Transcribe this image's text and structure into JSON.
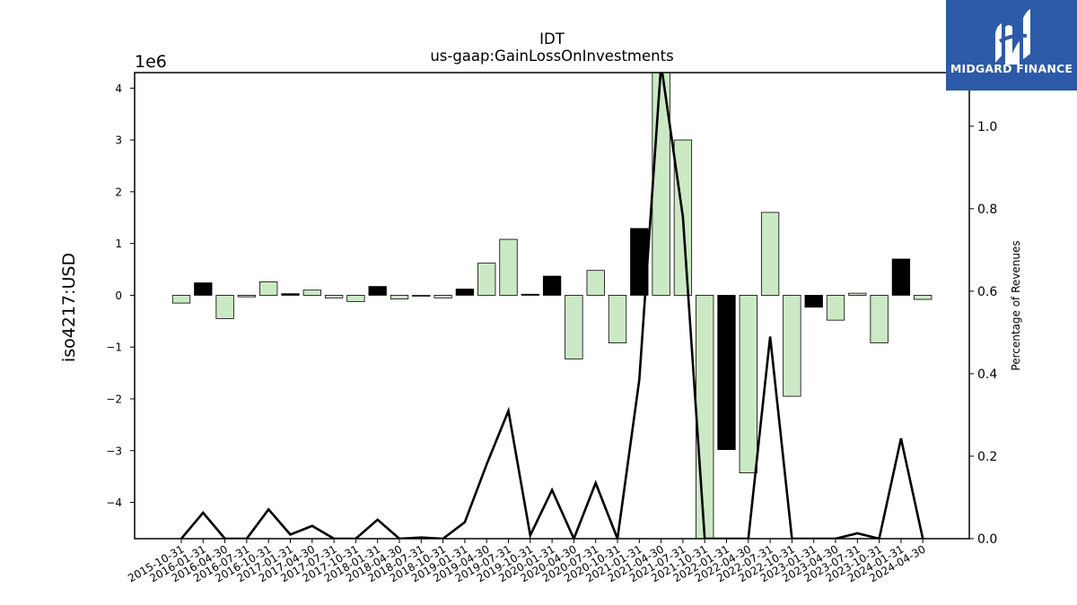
{
  "chart_data": {
    "type": "bar",
    "title": "IDT",
    "subtitle": "us-gaap:GainLossOnInvestments",
    "ylabel": "iso4217:USD",
    "y2label": "Percentage of Revenues",
    "y_multiplier": "1e6",
    "ylim": [
      -4.7,
      4.3
    ],
    "y2lim": [
      0.0,
      1.13
    ],
    "y_ticks": [
      -4,
      -3,
      -2,
      -1,
      0,
      1,
      2,
      3,
      4
    ],
    "y_tick_labels": [
      "−4",
      "−3",
      "−2",
      "−1",
      "0",
      "1",
      "2",
      "3",
      "4"
    ],
    "y2_ticks": [
      0.0,
      0.2,
      0.4,
      0.6,
      0.8,
      1.0
    ],
    "y2_tick_labels": [
      "0.0",
      "0.2",
      "0.4",
      "0.6",
      "0.8",
      "1.0"
    ],
    "categories": [
      "2015-10-31",
      "2016-01-31",
      "2016-04-30",
      "2016-07-31",
      "2016-10-31",
      "2017-01-31",
      "2017-04-30",
      "2017-07-31",
      "2017-10-31",
      "2018-01-31",
      "2018-04-30",
      "2018-07-31",
      "2018-10-31",
      "2019-01-31",
      "2019-04-30",
      "2019-07-31",
      "2019-10-31",
      "2020-01-31",
      "2020-04-30",
      "2020-07-31",
      "2020-10-31",
      "2021-01-31",
      "2021-04-30",
      "2021-07-31",
      "2021-10-31",
      "2022-01-31",
      "2022-04-30",
      "2022-07-31",
      "2022-10-31",
      "2023-01-31",
      "2023-04-30",
      "2023-07-31",
      "2023-10-31",
      "2024-01-31",
      "2024-04-30"
    ],
    "series": [
      {
        "type": "bar",
        "values": [
          -0.15,
          0.24,
          -0.45,
          -0.03,
          0.26,
          0.03,
          0.1,
          -0.05,
          -0.12,
          0.17,
          -0.07,
          -0.01,
          -0.05,
          0.12,
          0.62,
          1.08,
          0.02,
          0.37,
          -1.23,
          0.48,
          -0.92,
          1.29,
          4.6,
          3.0,
          -4.75,
          -2.98,
          -3.43,
          1.6,
          -1.95,
          -0.23,
          -0.48,
          0.04,
          -0.92,
          0.7,
          -0.08
        ],
        "colors": [
          "#cce9c5",
          "#000000",
          "#cce9c5",
          "#cce9c5",
          "#cce9c5",
          "#000000",
          "#cce9c5",
          "#cce9c5",
          "#cce9c5",
          "#000000",
          "#cce9c5",
          "#cce9c5",
          "#cce9c5",
          "#000000",
          "#cce9c5",
          "#cce9c5",
          "#000000",
          "#000000",
          "#cce9c5",
          "#cce9c5",
          "#cce9c5",
          "#000000",
          "#cce9c5",
          "#cce9c5",
          "#cce9c5",
          "#000000",
          "#cce9c5",
          "#cce9c5",
          "#cce9c5",
          "#000000",
          "#cce9c5",
          "#cce9c5",
          "#cce9c5",
          "#000000",
          "#cce9c5"
        ]
      },
      {
        "type": "line",
        "axis": "right",
        "values": [
          0.0,
          0.063,
          0.0,
          0.0,
          0.071,
          0.01,
          0.031,
          0.0,
          0.0,
          0.046,
          0.0,
          0.003,
          0.0,
          0.04,
          0.18,
          0.31,
          0.008,
          0.118,
          0.0,
          0.135,
          0.0,
          0.385,
          1.15,
          0.78,
          0.0,
          0.0,
          0.0,
          0.49,
          0.0,
          0.0,
          0.0,
          0.013,
          0.0,
          0.243,
          0.0
        ],
        "color": "#000000"
      }
    ],
    "grid": false,
    "legend": "none"
  },
  "logo": {
    "text": "MIDGARD FINANCE",
    "background": "#2c5aa8"
  }
}
